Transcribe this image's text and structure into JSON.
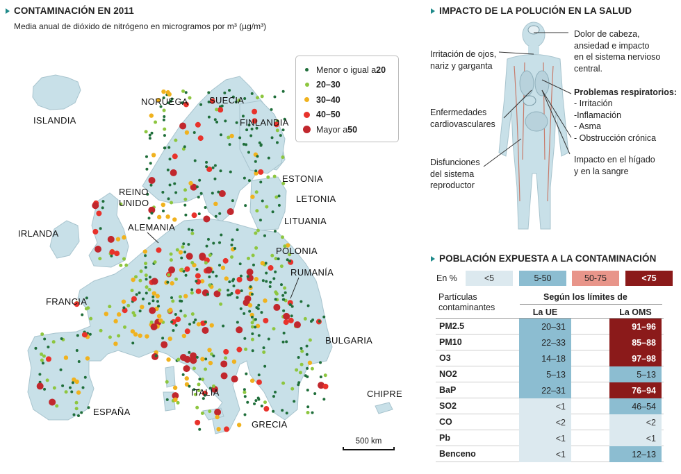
{
  "left": {
    "title": "CONTAMINACIÓN EN 2011",
    "subtitle": "Media anual de dióxido de nitrógeno  en microgramos por m³ (µg/m³)",
    "legend": [
      {
        "label": "Menor o igual a ",
        "bold": "20",
        "color": "#1f6e3a"
      },
      {
        "label": "",
        "bold": "20–30",
        "color": "#8dc63f"
      },
      {
        "label": "",
        "bold": "30–40",
        "color": "#f0b21e"
      },
      {
        "label": "",
        "bold": "40–50",
        "color": "#e8322b"
      },
      {
        "label": "Mayor a ",
        "bold": "50",
        "color": "#c1272d"
      }
    ],
    "countries": [
      "ISLANDIA",
      "NORUEGA",
      "SUECIA",
      "FINLANDIA",
      "ESTONIA",
      "LETONIA",
      "LITUANIA",
      "REINO",
      "UNIDO",
      "IRLANDA",
      "ALEMANIA",
      "POLONIA",
      "RUMANÍA",
      "FRANCIA",
      "BULGARIA",
      "ITALIA",
      "ESPAÑA",
      "GRECIA",
      "CHIPRE"
    ],
    "scale": "500 km"
  },
  "health": {
    "title": "IMPACTO DE LA POLUCIÓN EN LA SALUD",
    "irritacion": "Irritación de ojos,\nnariz y garganta",
    "cardio": "Enfermedades\ncardiovasculares",
    "disfunciones": "Disfunciones\ndel sistema\nreproductor",
    "dolor": "Dolor de cabeza,\nansiedad e impacto\nen el sistema nervioso\ncentral.",
    "resp_title": "Problemas respiratorios:",
    "resp_items": "- Irritación\n-Inflamación\n- Asma\n- Obstrucción crónica",
    "higado": "Impacto en el hígado\ny en la sangre"
  },
  "population": {
    "title": "POBLACIÓN EXPUESTA A LA CONTAMINACIÓN",
    "en_pct": "En %",
    "bands": [
      {
        "label": "<5",
        "color": "#dce9ef",
        "text": "#333"
      },
      {
        "label": "5-50",
        "color": "#8cbdd1",
        "text": "#222"
      },
      {
        "label": "50-75",
        "color": "#e8958a",
        "text": "#222"
      },
      {
        "label": "<75",
        "color": "#8b1a1a",
        "text": "#fff"
      }
    ],
    "particulas": "Partículas\ncontaminantes",
    "segun": "Según los límites de",
    "col_ue": "La UE",
    "col_oms": "La OMS",
    "rows": [
      {
        "name": "PM2.5",
        "ue": "20–31",
        "ue_band": 1,
        "oms": "91–96",
        "oms_band": 3
      },
      {
        "name": "PM10",
        "ue": "22–33",
        "ue_band": 1,
        "oms": "85–88",
        "oms_band": 3
      },
      {
        "name": "O3",
        "ue": "14–18",
        "ue_band": 1,
        "oms": "97–98",
        "oms_band": 3
      },
      {
        "name": "NO2",
        "ue": "5–13",
        "ue_band": 1,
        "oms": "5–13",
        "oms_band": 1
      },
      {
        "name": "BaP",
        "ue": "22–31",
        "ue_band": 1,
        "oms": "76–94",
        "oms_band": 3
      },
      {
        "name": "SO2",
        "ue": "<1",
        "ue_band": 0,
        "oms": "46–54",
        "oms_band": 1
      },
      {
        "name": "CO",
        "ue": "<2",
        "ue_band": 0,
        "oms": "<2",
        "oms_band": 0
      },
      {
        "name": "Pb",
        "ue": "<1",
        "ue_band": 0,
        "oms": "<1",
        "oms_band": 0
      },
      {
        "name": "Benceno",
        "ue": "<1",
        "ue_band": 0,
        "oms": "12–13",
        "oms_band": 1
      }
    ]
  }
}
